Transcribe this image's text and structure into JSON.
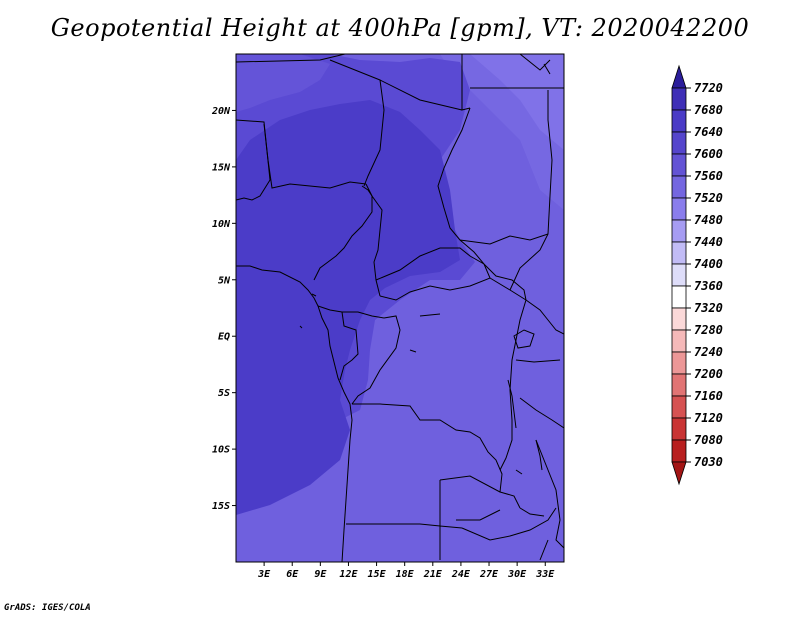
{
  "title": "Geopotential Height at 400hPa [gpm], VT: 2020042200",
  "footer": "GrADS: IGES/COLA",
  "map": {
    "lon_range": [
      0,
      35
    ],
    "lat_range": [
      -20,
      25
    ],
    "y_ticks": [
      {
        "lat": 20,
        "label": "20N"
      },
      {
        "lat": 15,
        "label": "15N"
      },
      {
        "lat": 10,
        "label": "10N"
      },
      {
        "lat": 5,
        "label": "5N"
      },
      {
        "lat": 0,
        "label": "EQ"
      },
      {
        "lat": -5,
        "label": "5S"
      },
      {
        "lat": -10,
        "label": "10S"
      },
      {
        "lat": -15,
        "label": "15S"
      }
    ],
    "x_ticks": [
      {
        "lon": 3,
        "label": "3E"
      },
      {
        "lon": 6,
        "label": "6E"
      },
      {
        "lon": 9,
        "label": "9E"
      },
      {
        "lon": 12,
        "label": "12E"
      },
      {
        "lon": 15,
        "label": "15E"
      },
      {
        "lon": 18,
        "label": "18E"
      },
      {
        "lon": 21,
        "label": "21E"
      },
      {
        "lon": 24,
        "label": "24E"
      },
      {
        "lon": 27,
        "label": "27E"
      },
      {
        "lon": 30,
        "label": "30E"
      },
      {
        "lon": 33,
        "label": "33E"
      }
    ]
  },
  "colorbar": {
    "labels": [
      "7720",
      "7680",
      "7640",
      "7600",
      "7560",
      "7520",
      "7480",
      "7440",
      "7400",
      "7360",
      "7320",
      "7280",
      "7240",
      "7200",
      "7160",
      "7120",
      "7080",
      "7030"
    ],
    "colors": [
      "#3f2fb7",
      "#4a3bc6",
      "#5545cc",
      "#6353d5",
      "#7466e0",
      "#8a7dec",
      "#a69cf2",
      "#c2bcf6",
      "#deddf9",
      "#ffffff",
      "#fbd9d9",
      "#f5b9b9",
      "#ec9797",
      "#e17474",
      "#d65252",
      "#c93434",
      "#b81f1f"
    ],
    "top_arrow_color": "#2b1d9b",
    "bottom_arrow_color": "#a31515"
  },
  "field_colors": {
    "c7600": "#5a4ad3",
    "c7580": "#6454d8",
    "c7560": "#6f60de",
    "c7540": "#7668e2",
    "c7520": "#8072e8",
    "c7640": "#4b3cc8"
  }
}
